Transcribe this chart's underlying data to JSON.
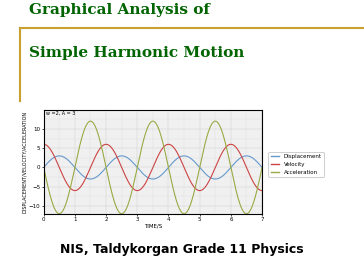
{
  "title_line1": "Graphical Analysis of",
  "title_line2": "Simple Harmonic Motion",
  "subtitle": "NIS, Taldykorgan Grade 11 Physics",
  "title_color": "#006400",
  "subtitle_color": "#000000",
  "xlabel": "TIME/S",
  "ylabel": "DISPLACEMENT/VELOCITY/ACCELERATION",
  "xlim": [
    0,
    7
  ],
  "ylim": [
    -12,
    15
  ],
  "yticks": [
    -10,
    -5,
    0,
    5,
    10
  ],
  "xticks": [
    0,
    1,
    2,
    3,
    4,
    5,
    6,
    7
  ],
  "displacement_color": "#6699cc",
  "velocity_color": "#cc4444",
  "acceleration_color": "#99aa44",
  "displacement_amplitude": 3,
  "velocity_amplitude": 6,
  "acceleration_amplitude": 12,
  "omega_factor": 1.0,
  "background_color": "#ffffff",
  "plot_bg_color": "#f0f0f0",
  "grid_color": "#cccccc",
  "border_color": "#c8a030",
  "legend_labels": [
    "Displacement",
    "Velocity",
    "Acceleration"
  ],
  "annotation": "w =2, A = 3",
  "title_fontsize": 11,
  "subtitle_fontsize": 9
}
